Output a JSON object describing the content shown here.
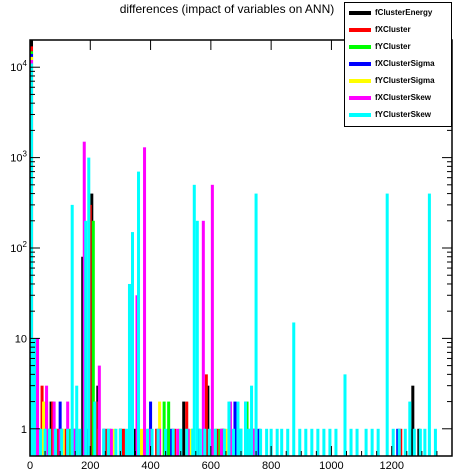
{
  "chart_data": {
    "type": "bar",
    "title": "differences (impact of variables on ANN)",
    "xlabel": "",
    "ylabel": "",
    "xlim": [
      0,
      1400
    ],
    "ylim": [
      0.5,
      20000
    ],
    "yscale": "log",
    "x_ticks": [
      {
        "value": 0,
        "label": "0"
      },
      {
        "value": 200,
        "label": "200"
      },
      {
        "value": 400,
        "label": "400"
      },
      {
        "value": 600,
        "label": "600"
      },
      {
        "value": 800,
        "label": "800"
      },
      {
        "value": 1000,
        "label": "1000"
      },
      {
        "value": 1200,
        "label": "1200"
      }
    ],
    "y_ticks": [
      {
        "value": 1,
        "label": "1"
      },
      {
        "value": 10,
        "label": "10"
      },
      {
        "value": 100,
        "label": "10^2"
      },
      {
        "value": 1000,
        "label": "10^3"
      },
      {
        "value": 10000,
        "label": "10^4"
      }
    ],
    "legend_position": "top-right",
    "series": [
      {
        "name": "fClusterEnergy",
        "color": "#000000",
        "points": [
          [
            5,
            20000
          ],
          [
            70,
            2
          ],
          [
            175,
            80
          ],
          [
            205,
            400
          ],
          [
            215,
            1
          ],
          [
            225,
            3
          ],
          [
            300,
            1
          ],
          [
            350,
            1
          ],
          [
            355,
            3
          ],
          [
            460,
            1
          ],
          [
            510,
            2
          ],
          [
            590,
            3
          ],
          [
            640,
            1
          ],
          [
            740,
            1
          ],
          [
            1265,
            1
          ],
          [
            1270,
            3
          ],
          [
            1290,
            1
          ]
        ]
      },
      {
        "name": "fXCluster",
        "color": "#ff0000",
        "points": [
          [
            5,
            17000
          ],
          [
            15,
            5
          ],
          [
            40,
            3
          ],
          [
            55,
            2
          ],
          [
            75,
            2
          ],
          [
            90,
            1
          ],
          [
            120,
            1
          ],
          [
            200,
            300
          ],
          [
            220,
            2
          ],
          [
            255,
            1
          ],
          [
            310,
            1
          ],
          [
            360,
            1
          ],
          [
            420,
            1
          ],
          [
            480,
            1
          ],
          [
            520,
            2
          ],
          [
            585,
            4
          ],
          [
            620,
            1
          ],
          [
            660,
            1
          ],
          [
            735,
            1
          ],
          [
            1230,
            1
          ]
        ]
      },
      {
        "name": "fYCluster",
        "color": "#00ff00",
        "points": [
          [
            5,
            15000
          ],
          [
            65,
            1
          ],
          [
            105,
            1
          ],
          [
            130,
            1
          ],
          [
            210,
            200
          ],
          [
            265,
            1
          ],
          [
            380,
            1
          ],
          [
            445,
            2
          ],
          [
            460,
            2
          ],
          [
            540,
            1
          ],
          [
            630,
            1
          ],
          [
            700,
            1
          ],
          [
            720,
            2
          ]
        ]
      },
      {
        "name": "fXClusterSigma",
        "color": "#0000ff",
        "points": [
          [
            5,
            14000
          ],
          [
            50,
            1
          ],
          [
            100,
            2
          ],
          [
            150,
            1
          ],
          [
            190,
            1
          ],
          [
            245,
            1
          ],
          [
            330,
            1
          ],
          [
            400,
            2
          ],
          [
            470,
            1
          ],
          [
            560,
            1
          ],
          [
            680,
            2
          ],
          [
            760,
            1
          ],
          [
            1220,
            1
          ]
        ]
      },
      {
        "name": "fYClusterSigma",
        "color": "#ffff00",
        "points": [
          [
            5,
            13000
          ],
          [
            20,
            1
          ],
          [
            45,
            2
          ],
          [
            80,
            1
          ],
          [
            110,
            1
          ],
          [
            160,
            1
          ],
          [
            230,
            1
          ],
          [
            280,
            1
          ],
          [
            370,
            1
          ],
          [
            430,
            2
          ],
          [
            495,
            1
          ],
          [
            530,
            1
          ],
          [
            610,
            1
          ],
          [
            650,
            1
          ],
          [
            690,
            1
          ],
          [
            745,
            1
          ]
        ]
      },
      {
        "name": "fXClusterSkew",
        "color": "#ff00ff",
        "points": [
          [
            5,
            12000
          ],
          [
            25,
            10
          ],
          [
            55,
            3
          ],
          [
            80,
            2
          ],
          [
            100,
            1
          ],
          [
            125,
            2
          ],
          [
            145,
            1
          ],
          [
            180,
            1500
          ],
          [
            230,
            5
          ],
          [
            270,
            1
          ],
          [
            335,
            1
          ],
          [
            355,
            30
          ],
          [
            380,
            1300
          ],
          [
            395,
            1
          ],
          [
            430,
            1
          ],
          [
            490,
            1
          ],
          [
            525,
            1
          ],
          [
            575,
            200
          ],
          [
            605,
            500
          ],
          [
            635,
            1
          ],
          [
            665,
            2
          ],
          [
            690,
            1
          ],
          [
            715,
            2
          ],
          [
            730,
            1
          ],
          [
            745,
            1
          ]
        ]
      },
      {
        "name": "fYClusterSkew",
        "color": "#00ffff",
        "points": [
          [
            5,
            11000
          ],
          [
            15,
            10
          ],
          [
            35,
            1
          ],
          [
            50,
            1
          ],
          [
            65,
            1
          ],
          [
            85,
            1
          ],
          [
            105,
            1
          ],
          [
            125,
            1
          ],
          [
            140,
            300
          ],
          [
            155,
            3
          ],
          [
            165,
            1
          ],
          [
            185,
            200
          ],
          [
            195,
            1000
          ],
          [
            215,
            2
          ],
          [
            245,
            1
          ],
          [
            260,
            1
          ],
          [
            285,
            1
          ],
          [
            300,
            1
          ],
          [
            320,
            1
          ],
          [
            330,
            40
          ],
          [
            340,
            150
          ],
          [
            360,
            700
          ],
          [
            390,
            1
          ],
          [
            405,
            1
          ],
          [
            425,
            1
          ],
          [
            450,
            1
          ],
          [
            475,
            1
          ],
          [
            500,
            1
          ],
          [
            520,
            1
          ],
          [
            540,
            1
          ],
          [
            545,
            500
          ],
          [
            555,
            200
          ],
          [
            565,
            1
          ],
          [
            580,
            1
          ],
          [
            595,
            1
          ],
          [
            615,
            1
          ],
          [
            645,
            1
          ],
          [
            660,
            2
          ],
          [
            675,
            1
          ],
          [
            690,
            2
          ],
          [
            700,
            1
          ],
          [
            715,
            2
          ],
          [
            725,
            1
          ],
          [
            735,
            3
          ],
          [
            750,
            400
          ],
          [
            765,
            1
          ],
          [
            785,
            1
          ],
          [
            800,
            1
          ],
          [
            820,
            1
          ],
          [
            835,
            1
          ],
          [
            855,
            1
          ],
          [
            875,
            15
          ],
          [
            895,
            1
          ],
          [
            915,
            1
          ],
          [
            935,
            1
          ],
          [
            955,
            1
          ],
          [
            975,
            1
          ],
          [
            995,
            1
          ],
          [
            1015,
            1
          ],
          [
            1045,
            4
          ],
          [
            1065,
            1
          ],
          [
            1085,
            1
          ],
          [
            1115,
            1
          ],
          [
            1135,
            1
          ],
          [
            1155,
            1
          ],
          [
            1185,
            400
          ],
          [
            1205,
            1
          ],
          [
            1225,
            1
          ],
          [
            1245,
            1
          ],
          [
            1260,
            2
          ],
          [
            1275,
            1
          ],
          [
            1295,
            1
          ],
          [
            1310,
            1
          ],
          [
            1325,
            400
          ],
          [
            1345,
            1
          ]
        ]
      }
    ]
  }
}
